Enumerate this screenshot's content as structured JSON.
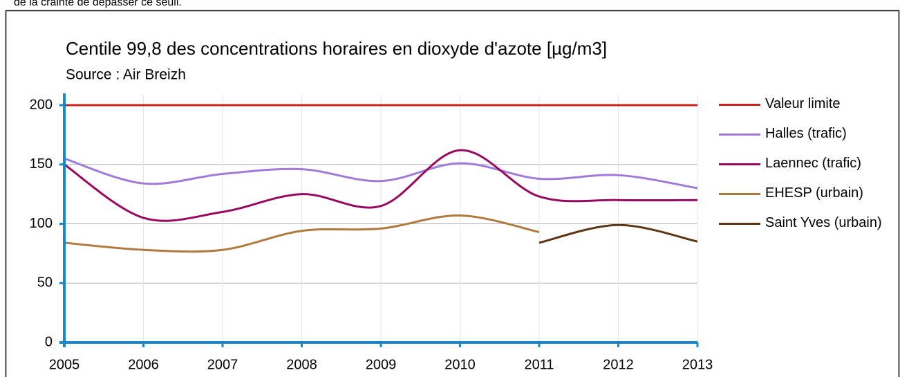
{
  "page_text": "de la crainte de dépasser ce seuil.",
  "chart_data": {
    "type": "line",
    "title": "Centile 99,8 des concentrations horaires en dioxyde d'azote [µg/m3]",
    "subtitle": "Source : Air Breizh",
    "x": [
      2005,
      2006,
      2007,
      2008,
      2009,
      2010,
      2011,
      2012,
      2013
    ],
    "xlim": [
      2005,
      2013
    ],
    "xticks": [
      2005,
      2006,
      2007,
      2008,
      2009,
      2010,
      2011,
      2012,
      2013
    ],
    "ylim": [
      0,
      200
    ],
    "yticks": [
      0,
      50,
      100,
      150,
      200
    ],
    "grid": true,
    "smooth": true,
    "legend": "right",
    "series": [
      {
        "name": "Valeur limite",
        "color": "#c9211e",
        "values": [
          200,
          200,
          200,
          200,
          200,
          200,
          200,
          200,
          200
        ]
      },
      {
        "name": "Halles (trafic)",
        "color": "#a07ad8",
        "values": [
          155,
          134,
          142,
          146,
          136,
          151,
          138,
          141,
          130
        ]
      },
      {
        "name": "Laennec (trafic)",
        "color": "#99085f",
        "values": [
          150,
          105,
          110,
          125,
          115,
          162,
          123,
          120,
          120
        ]
      },
      {
        "name": "EHESP (urbain)",
        "color": "#b07a3e",
        "values": [
          84,
          78,
          78,
          94,
          96,
          107,
          93,
          null,
          null
        ]
      },
      {
        "name": "Saint Yves (urbain)",
        "color": "#5c3512",
        "values": [
          null,
          null,
          null,
          null,
          null,
          null,
          84,
          99,
          85
        ]
      }
    ]
  }
}
